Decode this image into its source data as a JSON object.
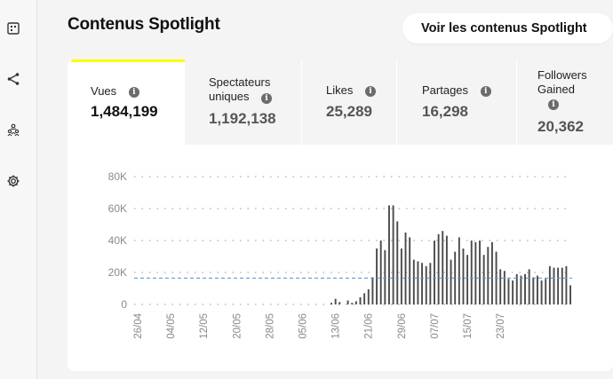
{
  "sidebar": {
    "items": [
      {
        "icon": "dashboard-icon"
      },
      {
        "icon": "share-icon"
      },
      {
        "icon": "people-icon"
      },
      {
        "icon": "gear-icon"
      }
    ]
  },
  "header": {
    "title": "Contenus Spotlight",
    "cta_label": "Voir les contenus Spotlight"
  },
  "metrics": [
    {
      "label": "Vues",
      "value": "1,484,199"
    },
    {
      "label": "Spectateurs uniques",
      "value": "1,192,138"
    },
    {
      "label": "Likes",
      "value": "25,289"
    },
    {
      "label": "Partages",
      "value": "16,298"
    },
    {
      "label": "Followers Gained",
      "value": "20,362"
    }
  ],
  "colors": {
    "accent": "#fffc00",
    "bar": "#4a4a4a",
    "average_line": "#5b9bd5"
  },
  "chart_data": {
    "type": "bar",
    "y_ticks": [
      "80K",
      "60K",
      "40K",
      "20K",
      "0"
    ],
    "ylim": [
      0,
      80000
    ],
    "grid": "dotted horizontal",
    "x_ticks": [
      "26/04",
      "04/05",
      "12/05",
      "20/05",
      "28/05",
      "05/06",
      "13/06",
      "21/06",
      "29/06",
      "07/07",
      "15/07",
      "23/07"
    ],
    "start_date": "2023-04-26",
    "values": [
      0,
      0,
      0,
      0,
      0,
      0,
      0,
      0,
      0,
      0,
      0,
      0,
      0,
      0,
      0,
      0,
      0,
      0,
      0,
      0,
      0,
      0,
      0,
      0,
      0,
      0,
      0,
      0,
      0,
      0,
      0,
      0,
      0,
      0,
      0,
      0,
      0,
      0,
      0,
      0,
      0,
      0,
      0,
      0,
      0,
      0,
      0,
      1000,
      3500,
      1500,
      0,
      2500,
      1000,
      2000,
      4500,
      7000,
      9500,
      17000,
      35000,
      40000,
      34000,
      62000,
      62000,
      52000,
      35000,
      45000,
      42000,
      28000,
      27000,
      26000,
      24000,
      26000,
      40000,
      44000,
      46000,
      43000,
      28000,
      33000,
      42000,
      35000,
      31000,
      40000,
      39000,
      40000,
      31000,
      36000,
      39000,
      33000,
      22000,
      21000,
      16000,
      15000,
      19000,
      18000,
      19000,
      22000,
      17000,
      18000,
      15000,
      16000,
      24000,
      23000,
      23000,
      23000,
      24000,
      12000
    ],
    "average": 16500
  }
}
